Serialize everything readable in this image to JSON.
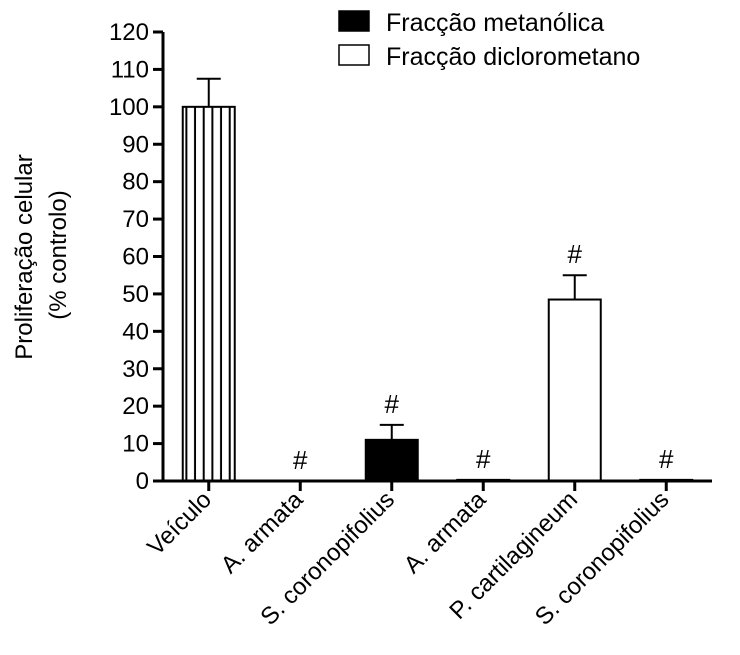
{
  "chart_data": {
    "type": "bar",
    "categories": [
      "Veículo",
      "A. armata",
      "S. coronopifolius",
      "A. armata",
      "P. cartilagineum",
      "S. coronopifolius"
    ],
    "values": [
      100,
      0,
      11,
      0.3,
      48.5,
      0.3
    ],
    "errors": [
      7.5,
      0,
      4,
      0,
      6.5,
      0
    ],
    "annotations": [
      "",
      "#",
      "#",
      "#",
      "#",
      "#"
    ],
    "bar_styles": [
      "striped",
      "metanolica",
      "metanolica",
      "diclorometano",
      "diclorometano",
      "diclorometano"
    ],
    "ylabel_lines": [
      "Proliferação celular",
      "(% controlo)"
    ],
    "ylim": [
      0,
      120
    ],
    "yticks": [
      0,
      10,
      20,
      30,
      40,
      50,
      60,
      70,
      80,
      90,
      100,
      110,
      120
    ],
    "legend": {
      "position": "top-right",
      "entries": [
        {
          "label": "Fracção metanólica",
          "fill": "#000000"
        },
        {
          "label": "Fracção diclorometano",
          "fill": "#ffffff"
        }
      ]
    },
    "colors": {
      "axis": "#000000",
      "bar_edge": "#000000"
    }
  }
}
